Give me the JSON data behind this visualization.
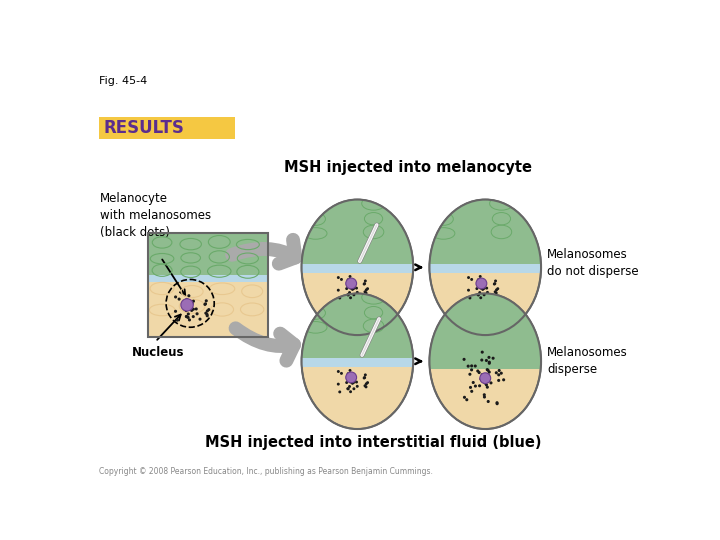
{
  "fig_label": "Fig. 45-4",
  "results_text": "RESULTS",
  "results_bg": "#F5C842",
  "results_text_color": "#5B2D8E",
  "title_top": "MSH injected into melanocyte",
  "title_bottom": "MSH injected into interstitial fluid (blue)",
  "label_melanocyte": "Melanocyte\nwith melanosomes\n(black dots)",
  "label_nucleus": "Nucleus",
  "label_no_disperse": "Melanosomes\ndo not disperse",
  "label_disperse": "Melanosomes\ndisperse",
  "copyright": "Copyright © 2008 Pearson Education, Inc., publishing as Pearson Benjamin Cummings.",
  "bg_color": "#FFFFFF",
  "skin_green": "#8FBC8F",
  "skin_green_dark": "#6aaa6a",
  "skin_tan": "#F0D8A8",
  "skin_tan2": "#E8C890",
  "skin_blue": "#B8D8E8",
  "cell_purple": "#9B6DB5",
  "arrow_gray": "#AAAAAA",
  "black_dot_color": "#1a1a1a",
  "outline_color": "#666666"
}
